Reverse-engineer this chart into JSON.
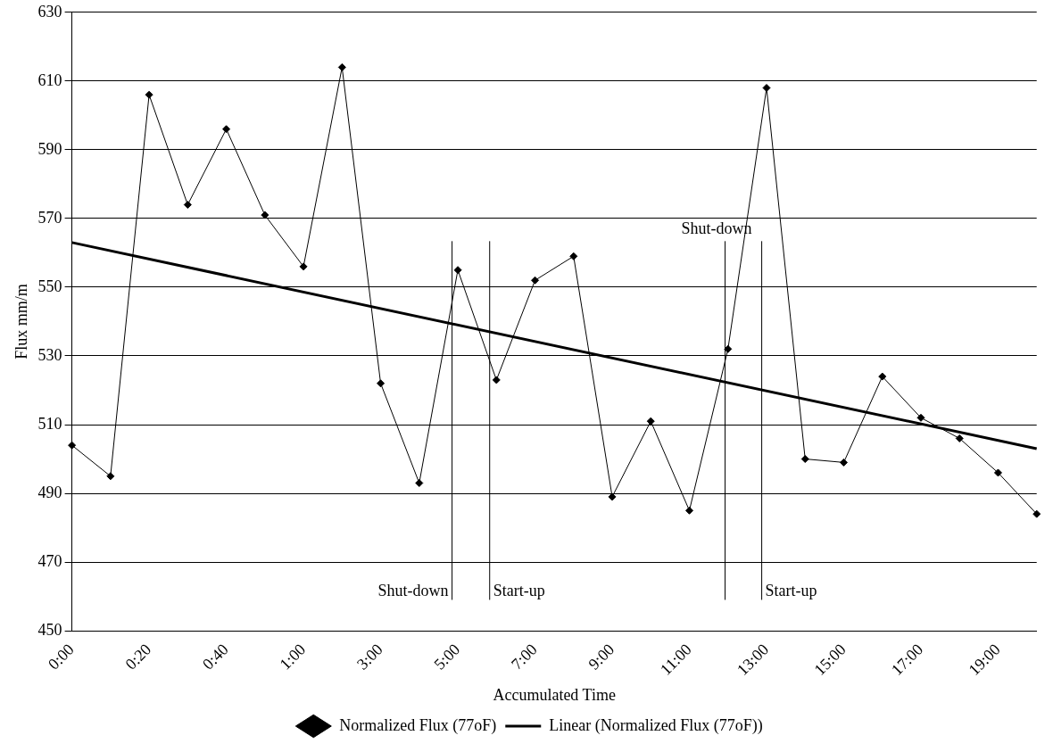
{
  "chart_data": {
    "type": "line",
    "xlabel": "Accumulated Time",
    "ylabel": "Flux mm/m",
    "categories": [
      "0:00",
      null,
      "0:20",
      null,
      "0:40",
      null,
      "1:00",
      null,
      "3:00",
      null,
      "5:00",
      null,
      "7:00",
      null,
      "9:00",
      null,
      "11:00",
      null,
      "13:00",
      null,
      "15:00",
      null,
      "17:00",
      null,
      "19:00",
      null
    ],
    "series": [
      {
        "name": "Normalized Flux (77oF)",
        "color": "#000000",
        "marker": "diamond",
        "values": [
          504,
          495,
          606,
          574,
          596,
          571,
          556,
          614,
          522,
          493,
          555,
          523,
          552,
          559,
          489,
          511,
          485,
          532,
          608,
          500,
          499,
          524,
          512,
          506,
          496,
          484
        ]
      },
      {
        "name": "Linear (Normalized Flux (77oF))",
        "color": "#000000",
        "marker": "none",
        "values": [
          563,
          null,
          null,
          null,
          null,
          null,
          null,
          null,
          null,
          null,
          null,
          null,
          null,
          null,
          null,
          null,
          null,
          null,
          null,
          null,
          null,
          null,
          null,
          null,
          null,
          503
        ]
      }
    ],
    "ylim": [
      450,
      630
    ],
    "yticks": [
      450,
      470,
      490,
      510,
      530,
      550,
      570,
      590,
      610,
      630
    ],
    "grid": "y",
    "legend": "bottom",
    "annotations": [
      "Shut-down",
      "Start-up",
      "Shut-down",
      "Start-up"
    ]
  }
}
